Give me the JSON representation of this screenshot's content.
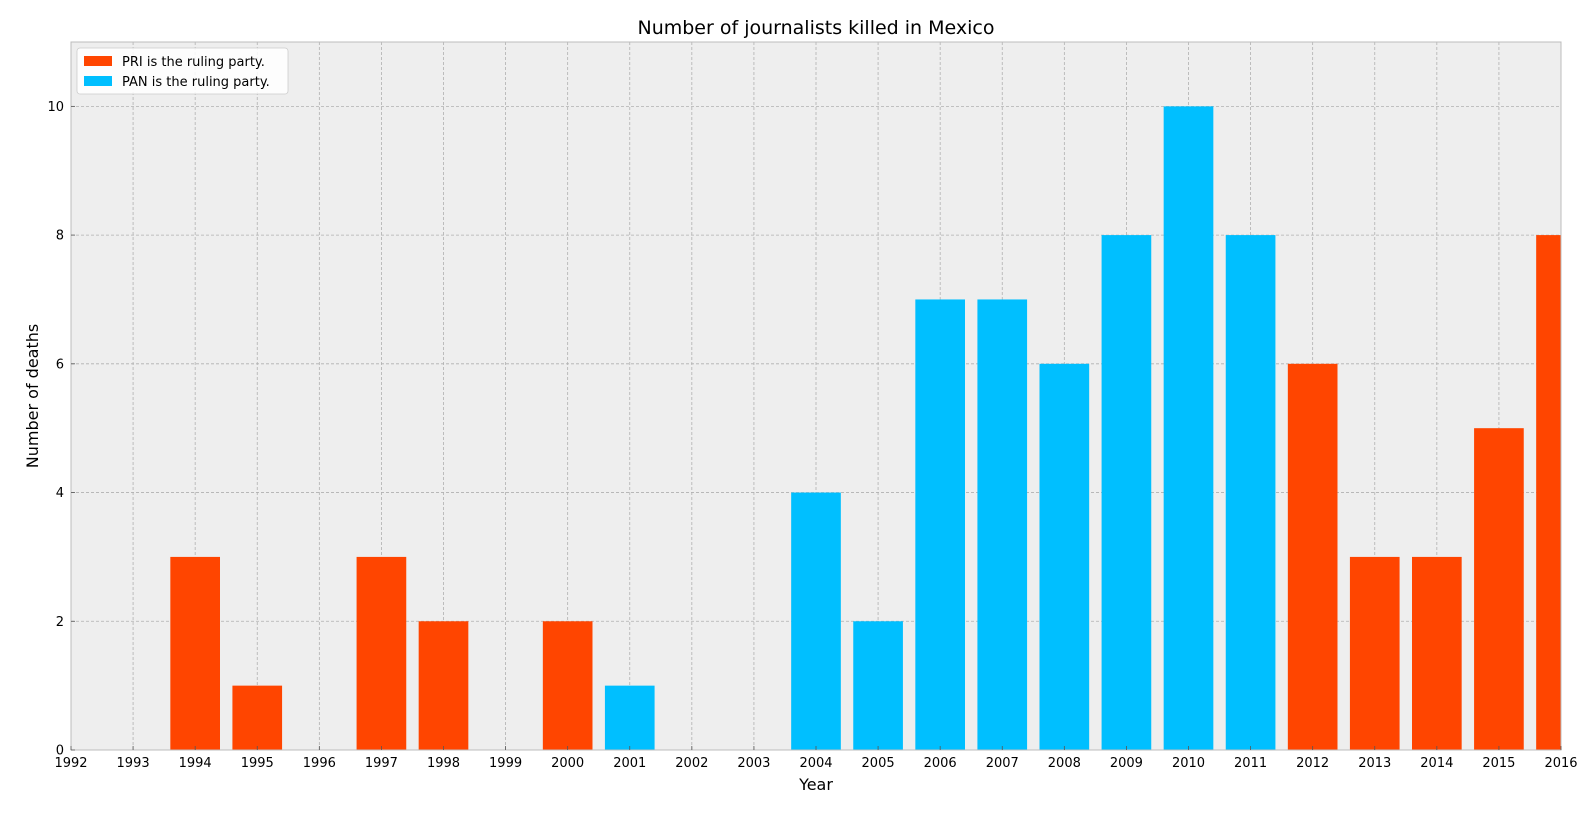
{
  "chart_data": {
    "type": "bar",
    "title": "Number of journalists killed in Mexico",
    "xlabel": "Year",
    "ylabel": "Number of deaths",
    "xlim": [
      1992,
      2016
    ],
    "ylim": [
      0,
      11
    ],
    "xticks": [
      1992,
      1993,
      1994,
      1995,
      1996,
      1997,
      1998,
      1999,
      2000,
      2001,
      2002,
      2003,
      2004,
      2005,
      2006,
      2007,
      2008,
      2009,
      2010,
      2011,
      2012,
      2013,
      2014,
      2015,
      2016
    ],
    "yticks": [
      0,
      2,
      4,
      6,
      8,
      10
    ],
    "grid": true,
    "legend_position": "top-left",
    "series": [
      {
        "name": "PRI is the ruling party.",
        "color": "#ff4500",
        "x": [
          1994,
          1995,
          1997,
          1998,
          2000,
          2012,
          2013,
          2014,
          2015,
          2016
        ],
        "values": [
          3,
          1,
          3,
          2,
          2,
          6,
          3,
          3,
          5,
          8
        ]
      },
      {
        "name": "PAN is the ruling party.",
        "color": "#00bfff",
        "x": [
          2001,
          2004,
          2005,
          2006,
          2007,
          2008,
          2009,
          2010,
          2011
        ],
        "values": [
          1,
          4,
          2,
          7,
          7,
          6,
          8,
          10,
          8
        ]
      }
    ],
    "colors": {
      "plot_background": "#eeeeee",
      "grid": "#b0b0b0",
      "axis_edge": "#bcbcbc",
      "text": "#000000"
    }
  }
}
